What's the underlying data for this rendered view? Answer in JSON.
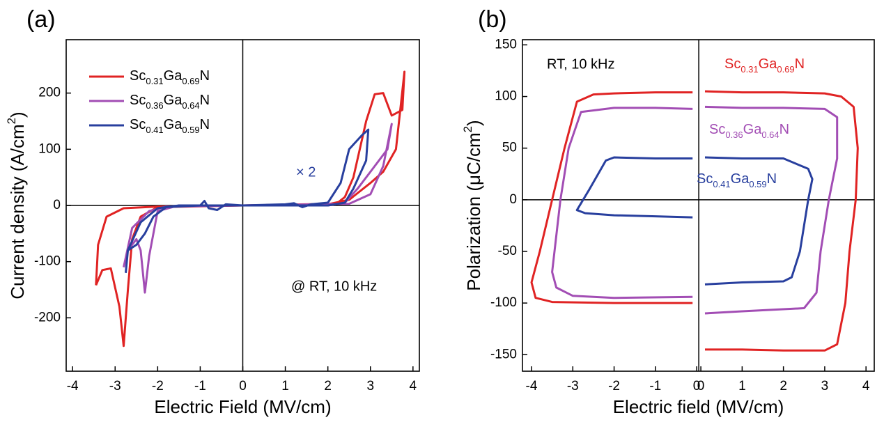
{
  "chart_data": [
    {
      "type": "line",
      "panel_label": "(a)",
      "xlabel": "Electric Field (MV/cm)",
      "ylabel": "Current density (A/cm2)",
      "xlim": [
        -4.15,
        4.15
      ],
      "ylim": [
        -295,
        295
      ],
      "xticks": [
        -4,
        -3,
        -2,
        -1,
        0,
        1,
        2,
        3,
        4
      ],
      "yticks": [
        -200,
        -100,
        0,
        100,
        200
      ],
      "legend": "upper left",
      "annotations": [
        "× 2",
        "@ RT, 10 kHz"
      ],
      "series": [
        {
          "name": "Sc0.31Ga0.69N",
          "color": "#e02323",
          "x": [
            -3.45,
            -3.3,
            -3.1,
            -2.9,
            -2.8,
            -2.7,
            -2.6,
            -2.4,
            -2.0,
            0,
            2.0,
            2.5,
            3.0,
            3.3,
            3.6,
            3.8,
            3.75,
            3.5,
            3.3,
            3.1,
            2.9,
            2.6,
            2.4,
            2.2,
            0,
            -2.0,
            -2.8,
            -3.2,
            -3.4,
            -3.45
          ],
          "y": [
            -142,
            -115,
            -112,
            -180,
            -250,
            -150,
            -60,
            -20,
            -3,
            0,
            2,
            10,
            40,
            60,
            100,
            238,
            170,
            160,
            200,
            198,
            150,
            50,
            15,
            3,
            0,
            -2,
            -5,
            -20,
            -70,
            -142
          ]
        },
        {
          "name": "Sc0.36Ga0.64N",
          "color": "#a24db4",
          "x": [
            -2.8,
            -2.7,
            -2.5,
            -2.4,
            -2.3,
            -2.2,
            -2.0,
            -1.5,
            0,
            2.5,
            3.0,
            3.3,
            3.5,
            3.4,
            3.0,
            2.7,
            2.4,
            2.0,
            0,
            -1.8,
            -2.2,
            -2.6,
            -2.8
          ],
          "y": [
            -110,
            -80,
            -60,
            -80,
            -155,
            -90,
            -10,
            0,
            0,
            3,
            20,
            70,
            145,
            100,
            60,
            30,
            5,
            0,
            0,
            -2,
            -10,
            -40,
            -110
          ]
        },
        {
          "name": "Sc0.41Ga0.59N",
          "color": "#283f9e",
          "x": [
            -2.75,
            -2.7,
            -2.5,
            -2.3,
            -2.1,
            -1.8,
            -1.0,
            -0.9,
            -0.8,
            -0.6,
            -0.4,
            0,
            1.0,
            1.2,
            1.4,
            1.6,
            2.0,
            2.3,
            2.5,
            2.8,
            2.95,
            2.9,
            2.6,
            2.4,
            2.0,
            0,
            -1.5,
            -2.0,
            -2.4,
            -2.7,
            -2.75
          ],
          "y": [
            -120,
            -80,
            -70,
            -50,
            -20,
            -3,
            0,
            8,
            -5,
            -8,
            2,
            0,
            2,
            4,
            -3,
            2,
            5,
            40,
            100,
            125,
            135,
            80,
            30,
            5,
            0,
            0,
            0,
            -5,
            -30,
            -80,
            -120
          ]
        }
      ]
    },
    {
      "type": "line",
      "panel_label": "(b)",
      "xlabel": "Electric field (MV/cm)",
      "ylabel": "Polarization (μC/cm2)",
      "xlim": [
        -4.27,
        4.25
      ],
      "ylim": [
        -166,
        155
      ],
      "x_break": true,
      "xticks_left": [
        -4,
        -3,
        -2,
        -1,
        0
      ],
      "xticks_right": [
        0,
        1,
        2,
        3,
        4
      ],
      "yticks": [
        -150,
        -100,
        -50,
        0,
        50,
        100,
        150
      ],
      "annotations": [
        "RT, 10 kHz"
      ],
      "series": [
        {
          "name": "Sc0.31Ga0.69N",
          "color": "#e02323",
          "x": [
            -0.1,
            -1,
            -2,
            -2.5,
            -2.9,
            -3.2,
            -3.5,
            -3.8,
            -4.0,
            -3.9,
            -3.5,
            -2,
            -0.1,
            null,
            0.1,
            1,
            2,
            3,
            3.4,
            3.7,
            3.8,
            3.75,
            3.6,
            3.5,
            3.3,
            3.0,
            2,
            1,
            0.1
          ],
          "y": [
            104,
            104,
            103,
            102,
            95,
            50,
            0,
            -50,
            -80,
            -95,
            -99,
            -100,
            -100,
            null,
            105,
            104,
            104,
            103,
            100,
            90,
            50,
            0,
            -50,
            -100,
            -140,
            -146,
            -146,
            -145,
            -145
          ]
        },
        {
          "name": "Sc0.36Ga0.64N",
          "color": "#a24db4",
          "x": [
            -0.1,
            -1,
            -2,
            -2.8,
            -3.1,
            -3.3,
            -3.5,
            -3.4,
            -3,
            -2,
            -0.1,
            null,
            0.1,
            1,
            2,
            3,
            3.3,
            3.3,
            3.1,
            2.9,
            2.8,
            2.5,
            1,
            0.1
          ],
          "y": [
            88,
            89,
            89,
            85,
            50,
            0,
            -70,
            -85,
            -93,
            -95,
            -94,
            null,
            90,
            89,
            89,
            88,
            80,
            40,
            0,
            -50,
            -90,
            -105,
            -108,
            -110
          ]
        },
        {
          "name": "Sc0.41Ga0.59N",
          "color": "#283f9e",
          "x": [
            -0.1,
            -1,
            -2,
            -2.2,
            -2.6,
            -2.9,
            -2.7,
            -2,
            -1,
            -0.1,
            null,
            0.1,
            1,
            2,
            2.6,
            2.7,
            2.6,
            2.4,
            2.2,
            2,
            1,
            0.1
          ],
          "y": [
            40,
            40,
            41,
            38,
            10,
            -10,
            -13,
            -15,
            -16,
            -17,
            null,
            41,
            40,
            40,
            30,
            20,
            0,
            -50,
            -75,
            -79,
            -80,
            -82
          ]
        }
      ]
    }
  ]
}
